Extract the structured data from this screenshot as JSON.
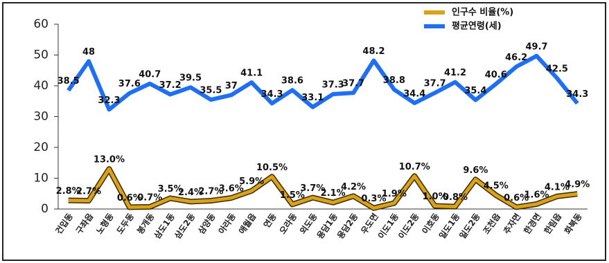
{
  "chart_data": {
    "type": "line",
    "categories": [
      "건입동",
      "구좌읍",
      "노형동",
      "도두동",
      "봉개동",
      "삼도1동",
      "삼도2동",
      "삼양동",
      "아라동",
      "애월읍",
      "연동",
      "오라동",
      "외도동",
      "용담1동",
      "용담2동",
      "우도면",
      "이도1동",
      "이도2동",
      "이호동",
      "일도1동",
      "일도2동",
      "조천읍",
      "추자면",
      "한경면",
      "한림읍",
      "화북동"
    ],
    "series": [
      {
        "name": "인구수 비율(%)",
        "color": "#d9a21a",
        "values": [
          2.8,
          2.7,
          13.0,
          0.6,
          0.7,
          3.5,
          2.4,
          2.7,
          3.6,
          5.9,
          10.5,
          1.5,
          3.7,
          2.1,
          4.2,
          0.3,
          1.9,
          10.7,
          1.0,
          0.8,
          9.6,
          4.5,
          0.6,
          1.6,
          4.1,
          4.9
        ],
        "value_labels": [
          "2.8%",
          "2.7%",
          "13.0%",
          "0.6%",
          "0.7%",
          "3.5%",
          "2.4%",
          "2.7%",
          "3.6%",
          "5.9%",
          "10.5%",
          "1.5%",
          "3.7%",
          "2.1%",
          "4.2%",
          "0.3%",
          "1.9%",
          "10.7%",
          "1.0%",
          "0.8%",
          "9.6%",
          "4.5%",
          "0.6%",
          "1.6%",
          "4.1%",
          "4.9%"
        ]
      },
      {
        "name": "평균연령(세)",
        "color": "#1f6ff2",
        "values": [
          38.5,
          48,
          32.3,
          37.6,
          40.7,
          37.2,
          39.5,
          35.5,
          37,
          41.1,
          34.3,
          38.6,
          33.1,
          37.3,
          37.7,
          48.2,
          38.8,
          34.4,
          37.7,
          41.2,
          35.4,
          40.6,
          46.2,
          49.7,
          42.5,
          34.3
        ]
      }
    ],
    "ylim": [
      0,
      60
    ],
    "yticks": [
      0,
      10,
      20,
      30,
      40,
      50,
      60
    ],
    "grid": false,
    "legend": "top-right"
  }
}
